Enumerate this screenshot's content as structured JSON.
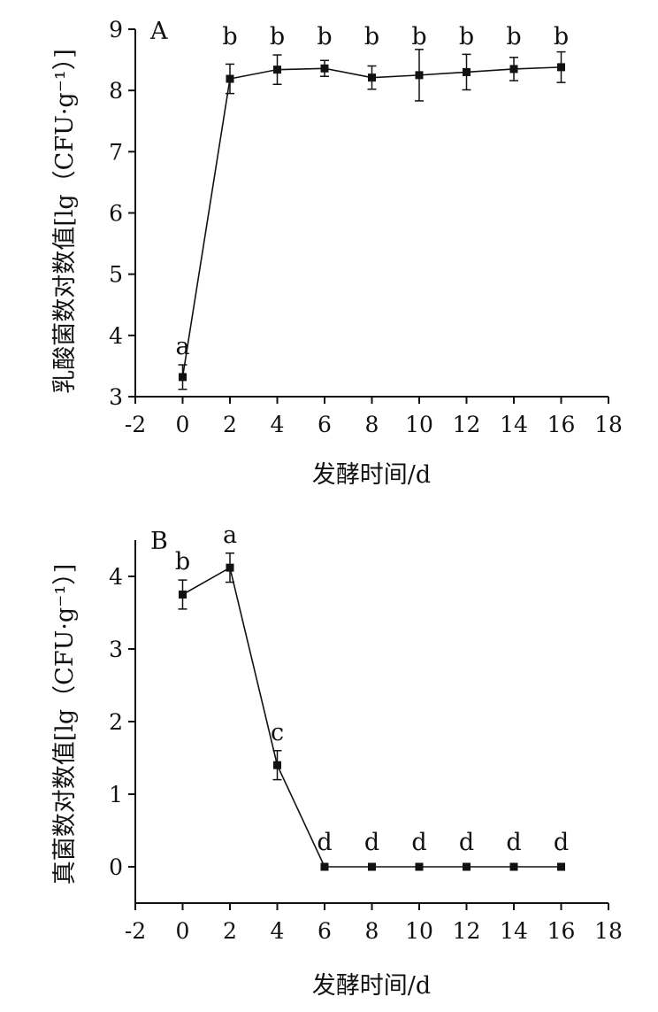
{
  "chart_data": [
    {
      "type": "line",
      "panel_label": "A",
      "xlabel": "发酵时间/d",
      "ylabel": "乳酸菌数对数值[lg（CFU·g⁻¹）]",
      "xlim": [
        -2,
        18
      ],
      "ylim": [
        3,
        9
      ],
      "xticks": [
        "-2",
        "0",
        "2",
        "4",
        "6",
        "8",
        "10",
        "12",
        "14",
        "16",
        "18"
      ],
      "yticks": [
        "3",
        "4",
        "5",
        "6",
        "7",
        "8",
        "9"
      ],
      "points": [
        {
          "x": 0,
          "y": 3.32,
          "err": 0.2,
          "sig": "a"
        },
        {
          "x": 2,
          "y": 8.19,
          "err": 0.24,
          "sig": "b"
        },
        {
          "x": 4,
          "y": 8.34,
          "err": 0.24,
          "sig": "b"
        },
        {
          "x": 6,
          "y": 8.36,
          "err": 0.13,
          "sig": "b"
        },
        {
          "x": 8,
          "y": 8.21,
          "err": 0.19,
          "sig": "b"
        },
        {
          "x": 10,
          "y": 8.25,
          "err": 0.42,
          "sig": "b"
        },
        {
          "x": 12,
          "y": 8.3,
          "err": 0.29,
          "sig": "b"
        },
        {
          "x": 14,
          "y": 8.35,
          "err": 0.19,
          "sig": "b"
        },
        {
          "x": 16,
          "y": 8.38,
          "err": 0.25,
          "sig": "b"
        }
      ],
      "color": "#111111"
    },
    {
      "type": "line",
      "panel_label": "B",
      "xlabel": "发酵时间/d",
      "ylabel": "真菌数对数值[lg（CFU·g⁻¹）]",
      "xlim": [
        -2,
        18
      ],
      "ylim": [
        -0.5,
        4.5
      ],
      "xticks": [
        "-2",
        "0",
        "2",
        "4",
        "6",
        "8",
        "10",
        "12",
        "14",
        "16",
        "18"
      ],
      "yticks": [
        "0",
        "1",
        "2",
        "3",
        "4"
      ],
      "points": [
        {
          "x": 0,
          "y": 3.75,
          "err": 0.2,
          "sig": "b"
        },
        {
          "x": 2,
          "y": 4.12,
          "err": 0.2,
          "sig": "a"
        },
        {
          "x": 4,
          "y": 1.4,
          "err": 0.2,
          "sig": "c"
        },
        {
          "x": 6,
          "y": 0,
          "err": 0,
          "sig": "d"
        },
        {
          "x": 8,
          "y": 0,
          "err": 0,
          "sig": "d"
        },
        {
          "x": 10,
          "y": 0,
          "err": 0,
          "sig": "d"
        },
        {
          "x": 12,
          "y": 0,
          "err": 0,
          "sig": "d"
        },
        {
          "x": 14,
          "y": 0,
          "err": 0,
          "sig": "d"
        },
        {
          "x": 16,
          "y": 0,
          "err": 0,
          "sig": "d"
        }
      ],
      "color": "#111111"
    }
  ]
}
